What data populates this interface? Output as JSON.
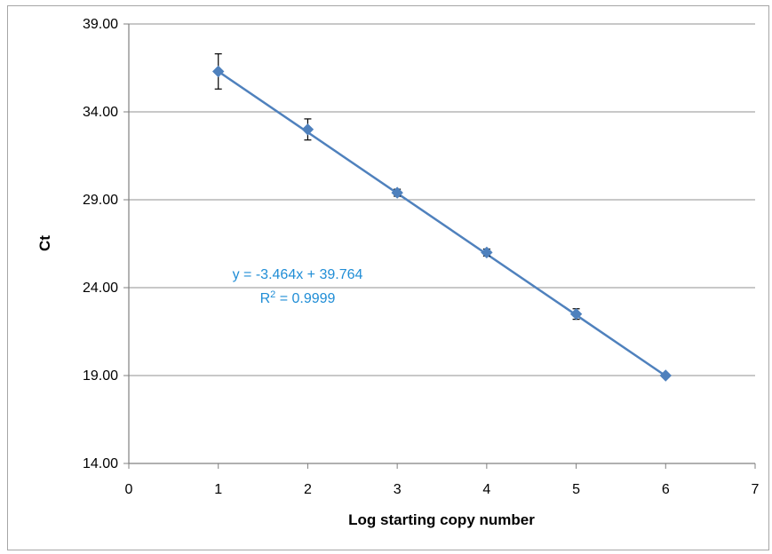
{
  "chart_data": {
    "type": "scatter",
    "title": "",
    "xlabel": "Log starting copy number",
    "ylabel": "Ct",
    "xlim": [
      0,
      7
    ],
    "ylim": [
      14,
      39
    ],
    "x_ticks": [
      "0",
      "1",
      "2",
      "3",
      "4",
      "5",
      "6",
      "7"
    ],
    "y_ticks": [
      "14.00",
      "19.00",
      "24.00",
      "29.00",
      "34.00",
      "39.00"
    ],
    "grid": "horizontal",
    "series": [
      {
        "x": [
          1,
          2,
          3,
          4,
          5,
          6
        ],
        "y": [
          36.3,
          33.0,
          29.4,
          26.0,
          22.5,
          19.0
        ],
        "error": [
          1.0,
          0.6,
          0.2,
          0.2,
          0.3,
          0.1
        ]
      }
    ],
    "trendline": {
      "slope": -3.464,
      "intercept": 39.764,
      "equation": "y = -3.464x + 39.764",
      "r2_prefix": "R",
      "r2_exp": "2",
      "r2_value": " = 0.9999"
    },
    "colors": {
      "series": "#4f81bd",
      "equation": "#1f8dd6",
      "grid": "#a6a6a6",
      "axis": "#808080",
      "error_bar": "#000000"
    }
  }
}
